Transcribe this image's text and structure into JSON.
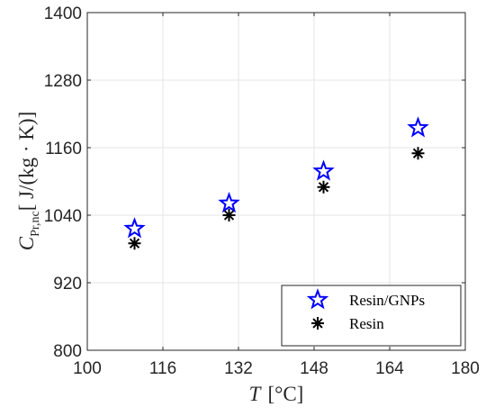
{
  "chart_data": {
    "type": "scatter",
    "x": [
      110,
      130,
      150,
      170
    ],
    "series": [
      {
        "name": "Resin/GNPs",
        "marker": "star",
        "color": "#0000ff",
        "values": [
          1016,
          1061,
          1118,
          1195
        ]
      },
      {
        "name": "Resin",
        "marker": "asterisk",
        "color": "#000000",
        "values": [
          990,
          1040,
          1090,
          1150
        ]
      }
    ],
    "xlim": [
      100,
      180
    ],
    "ylim": [
      800,
      1400
    ],
    "xticks": [
      "100",
      "116",
      "132",
      "148",
      "164",
      "180"
    ],
    "yticks": [
      "800",
      "920",
      "1040",
      "1160",
      "1280",
      "1400"
    ],
    "xlabel": {
      "var": "T",
      "unit": "[°C]"
    },
    "ylabel": {
      "var": "C",
      "sub": "Pr,nc",
      "unit": "[ J/(kg · K)]"
    },
    "grid": true,
    "legend_position": "bottom-right"
  }
}
